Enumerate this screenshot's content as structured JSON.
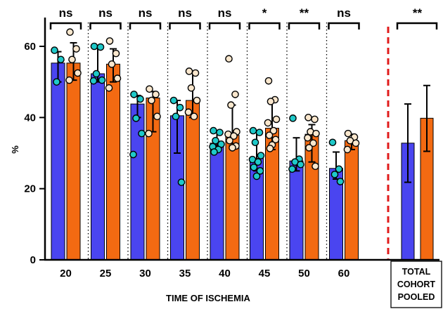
{
  "chart_data": {
    "type": "bar",
    "xlabel": "TIME OF ISCHEMIA",
    "ylabel": "%",
    "ylim": [
      0,
      65
    ],
    "yticks": [
      0,
      20,
      40,
      60
    ],
    "categories": [
      "20",
      "25",
      "30",
      "35",
      "40",
      "45",
      "50",
      "60"
    ],
    "significance": [
      "ns",
      "ns",
      "ns",
      "ns",
      "ns",
      "*",
      "**",
      "ns"
    ],
    "colors": {
      "series1_bar": "#4a45f0",
      "series2_bar": "#f36a12",
      "series1_points": "#1fc9c9",
      "series2_points": "#fae7cd",
      "pooled_separator": "#e01b1b"
    },
    "series": [
      {
        "values": [
          55.3,
          52.3,
          43.8,
          40.5,
          32.8,
          28.5,
          27.8,
          25.7
        ],
        "error_high": [
          58.5,
          59.5,
          46.2,
          44.8,
          36.0,
          36.3,
          34.3,
          30.3
        ],
        "error_low": [
          50.0,
          50.0,
          40.0,
          30.0,
          30.5,
          25.0,
          25.0,
          22.7
        ],
        "points": [
          [
            58.9,
            56.3,
            50.0
          ],
          [
            60.0,
            59.8,
            52.3,
            50.5,
            50.3
          ],
          [
            46.5,
            45.2,
            39.8,
            35.5,
            29.6
          ],
          [
            44.8,
            42.8,
            40.3,
            21.8
          ],
          [
            36.3,
            35.8,
            33.5,
            32.5,
            31.8,
            31.0,
            30.3
          ],
          [
            36.3,
            35.8,
            33.0,
            29.3,
            28.2,
            27.5,
            26.0,
            25.0,
            23.5
          ],
          [
            39.8,
            28.3,
            27.5,
            26.8,
            25.5
          ],
          [
            33.0,
            25.5,
            24.0,
            22.0
          ]
        ]
      },
      {
        "values": [
          55.3,
          55.0,
          45.5,
          44.8,
          35.0,
          37.0,
          35.3,
          33.5
        ],
        "error_high": [
          61.0,
          59.3,
          47.3,
          53.0,
          43.5,
          45.0,
          38.0,
          35.3
        ],
        "error_low": [
          50.5,
          50.0,
          36.0,
          40.0,
          32.0,
          31.0,
          27.5,
          31.0
        ],
        "points": [
          [
            64.0,
            59.3,
            56.3,
            52.5,
            50.5
          ],
          [
            61.5,
            58.0,
            55.0,
            51.0,
            48.3
          ],
          [
            48.0,
            46.5,
            44.8,
            40.3,
            35.5
          ],
          [
            53.0,
            52.5,
            48.3,
            44.8,
            41.5,
            40.3
          ],
          [
            56.5,
            46.5,
            43.5,
            36.0,
            35.3,
            34.8,
            33.5,
            32.0,
            31.5
          ],
          [
            50.3,
            45.0,
            44.5,
            39.5,
            38.5,
            36.3,
            35.0,
            33.8,
            32.3,
            31.3
          ],
          [
            40.0,
            39.5,
            36.0,
            35.5,
            34.3,
            32.8,
            31.5,
            26.3
          ],
          [
            35.5,
            34.5,
            33.5,
            32.8,
            31.0
          ]
        ]
      }
    ],
    "pooled": {
      "label_lines": [
        "TOTAL",
        "COHORT",
        "POOLED"
      ],
      "significance": "**",
      "values": [
        32.8,
        39.8
      ],
      "error_high": [
        43.8,
        49.0
      ],
      "error_low": [
        21.8,
        30.5
      ]
    }
  }
}
